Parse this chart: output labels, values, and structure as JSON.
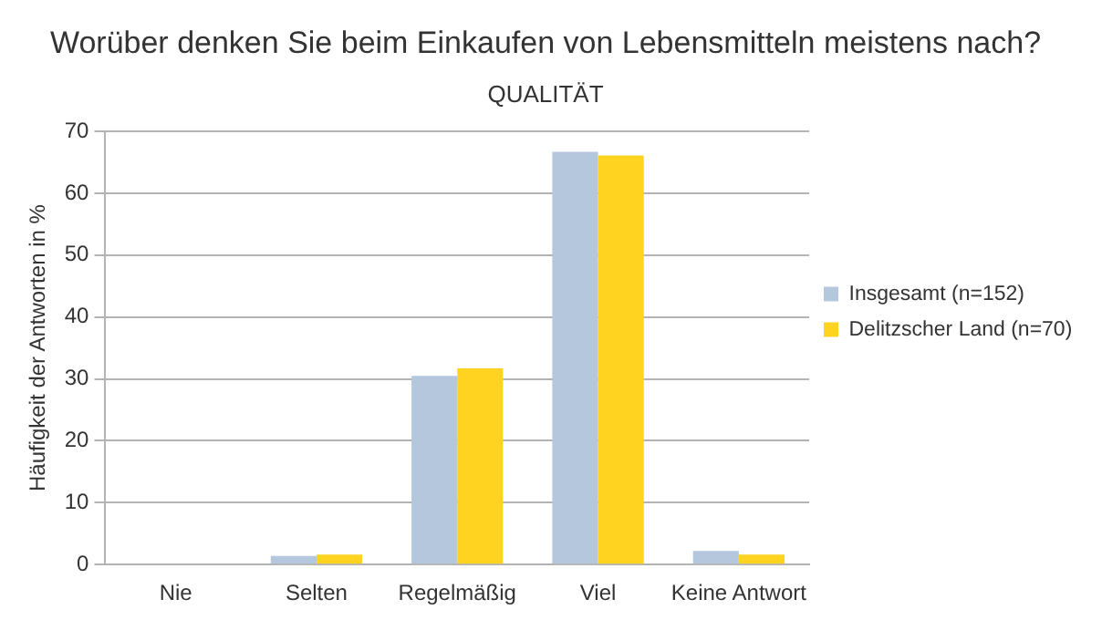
{
  "chart_data": {
    "type": "bar",
    "title": "Worüber denken Sie beim Einkaufen von Lebensmitteln meistens nach?",
    "subtitle": "QUALITÄT",
    "ylabel": "Häufigkeit der Antworten in %",
    "categories": [
      "Nie",
      "Selten",
      "Regelmäßig",
      "Viel",
      "Keine Antwort"
    ],
    "series": [
      {
        "name": "Insgesamt (n=152)",
        "color": "#b4c7dc",
        "values": [
          0,
          1.4,
          30.5,
          66.7,
          2.2
        ]
      },
      {
        "name": "Delitzscher Land (n=70)",
        "color": "#ffd320",
        "values": [
          0,
          1.6,
          31.7,
          66.1,
          1.6
        ]
      }
    ],
    "ylim": [
      0,
      70
    ],
    "yticks": [
      0,
      10,
      20,
      30,
      40,
      50,
      60,
      70
    ],
    "grid": "y",
    "legend": "right"
  }
}
